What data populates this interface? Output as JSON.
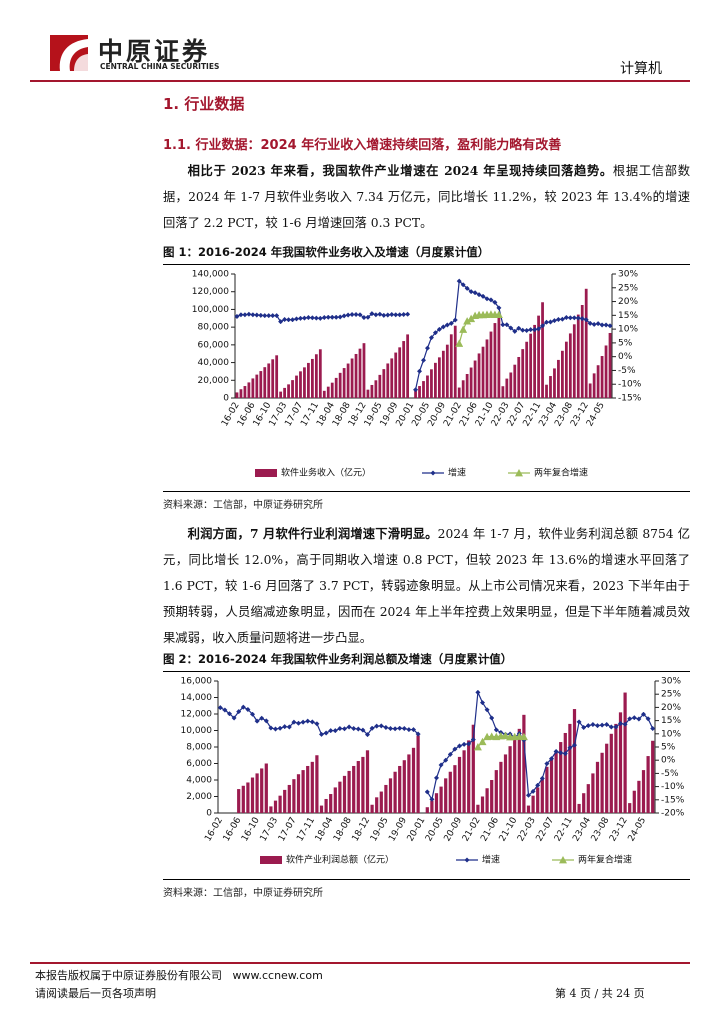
{
  "header": {
    "logo_cn": "中原证券",
    "logo_en": "CENTRAL CHINA SECURITIES",
    "section": "计算机"
  },
  "heading_1": "1. 行业数据",
  "heading_2": "1.1. 行业数据：2024 年行业收入增速持续回落，盈利能力略有改善",
  "paragraphs": [
    {
      "bold": "相比于 2023 年来看，我国软件产业增速在 2024 年呈现持续回落趋势。",
      "text": "根据工信部数据，2024 年 1-7 月软件业务收入 7.34 万亿元，同比增长 11.2%，较 2023 年 13.4%的增速回落了 2.2 PCT，较 1-6 月增速回落 0.3 PCT。"
    },
    {
      "bold": "利润方面，7 月软件行业利润增速下滑明显。",
      "text": "2024 年 1-7 月，软件业务利润总额 8754 亿元，同比增长 12.0%，高于同期收入增速 0.8 PCT，但较 2023 年 13.6%的增速水平回落了 1.6 PCT，较 1-6 月回落了 3.7 PCT，转弱迹象明显。从上市公司情况来看，2023 下半年由于预期转弱，人员缩减迹象明显，因而在 2024 年上半年控费上效果明显，但是下半年随着减员效果减弱，收入质量问题将进一步凸显。"
    }
  ],
  "figures": [
    {
      "caption": "图 1：2016-2024 年我国软件业务收入及增速（月度累计值）",
      "source": "资料来源：工信部，中原证券研究所"
    },
    {
      "caption": "图 2：2016-2024 年我国软件业务利润总额及增速（月度累计值）",
      "source": "资料来源：工信部，中原证券研究所"
    }
  ],
  "chart_data": [
    {
      "type": "bar_line",
      "categories": [
        "16-02",
        null,
        null,
        null,
        "16-06",
        null,
        null,
        null,
        "16-10",
        null,
        null,
        null,
        "17-03",
        null,
        null,
        null,
        "17-07",
        null,
        null,
        null,
        "17-11",
        null,
        null,
        null,
        "18-04",
        null,
        null,
        null,
        "18-08",
        null,
        null,
        null,
        "18-12",
        null,
        null,
        null,
        "19-05",
        null,
        null,
        null,
        "19-09",
        null,
        null,
        null,
        "20-01",
        null,
        null,
        null,
        "20-05",
        null,
        null,
        null,
        "20-09",
        null,
        null,
        null,
        "21-02",
        null,
        null,
        null,
        "21-06",
        null,
        null,
        null,
        "21-10",
        null,
        null,
        null,
        "22-03",
        null,
        null,
        null,
        "22-07",
        null,
        null,
        null,
        "22-11",
        null,
        null,
        null,
        "23-04",
        null,
        null,
        null,
        "23-08",
        null,
        null,
        null,
        "23-12",
        null,
        null,
        null,
        "24-05",
        null,
        null
      ],
      "ylim": [
        0,
        140000
      ],
      "yticks": [
        0,
        {
          "value": 20000,
          "label": "20,000"
        },
        {
          "value": 40000,
          "label": "40,000"
        },
        {
          "value": 60000,
          "label": "60,000"
        },
        {
          "value": 80000,
          "label": "80,000"
        },
        {
          "value": 100000,
          "label": "100,000"
        },
        {
          "value": 120000,
          "label": "120,000"
        },
        {
          "value": 140000,
          "label": "140,000"
        }
      ],
      "y2lim": [
        -15,
        30
      ],
      "y2ticks": [
        {
          "value": -15,
          "label": "-15%"
        },
        {
          "value": -10,
          "label": "-10%"
        },
        {
          "value": -5,
          "label": "-5%"
        },
        {
          "value": 0,
          "label": "0%"
        },
        {
          "value": 5,
          "label": "5%"
        },
        {
          "value": 10,
          "label": "10%"
        },
        {
          "value": 15,
          "label": "15%"
        },
        {
          "value": 20,
          "label": "20%"
        },
        {
          "value": 25,
          "label": "25%"
        },
        {
          "value": 30,
          "label": "30%"
        }
      ],
      "series": [
        {
          "name": "软件业务收入（亿元）",
          "type": "bar",
          "color": "#9b1b4f",
          "values": [
            6300,
            9900,
            13500,
            17600,
            22100,
            26400,
            30400,
            34800,
            39000,
            43700,
            48200,
            7200,
            11400,
            15400,
            20200,
            25300,
            30100,
            34600,
            39600,
            44100,
            49400,
            55000,
            8100,
            12800,
            17300,
            22700,
            28400,
            33800,
            38900,
            44600,
            49700,
            55700,
            61900,
            9400,
            14700,
            20000,
            26100,
            32600,
            39000,
            44700,
            51300,
            57200,
            64300,
            71800,
            null,
            8000,
            13500,
            19100,
            25400,
            32400,
            39700,
            45900,
            53300,
            60200,
            71900,
            81600,
            11800,
            20000,
            27100,
            34400,
            42300,
            50300,
            57900,
            66100,
            75000,
            84600,
            94990,
            13300,
            21900,
            28800,
            37600,
            46300,
            55200,
            63500,
            72600,
            82500,
            93000,
            108100,
            15000,
            24800,
            33400,
            43000,
            53300,
            63600,
            72900,
            83200,
            94200,
            105000,
            123300,
            16400,
            27800,
            37000,
            47400,
            59300,
            73400
          ]
        },
        {
          "name": "增速",
          "type": "line",
          "axis": "y2",
          "marker": "diamond",
          "color": "#1f2f8a",
          "values": [
            14.6,
            15.2,
            15.2,
            15.4,
            15.2,
            15.1,
            15.0,
            14.9,
            14.9,
            14.9,
            14.9,
            12.7,
            13.5,
            13.4,
            13.4,
            13.7,
            13.9,
            14.0,
            14.2,
            14.1,
            14.0,
            13.9,
            14.2,
            14.3,
            14.3,
            14.3,
            14.4,
            14.8,
            15.1,
            15.3,
            15.3,
            15.2,
            14.2,
            14.3,
            15.6,
            15.2,
            15.4,
            15.0,
            15.1,
            15.3,
            15.2,
            15.2,
            15.3,
            15.4,
            null,
            -12.0,
            -5.3,
            -1.3,
            3.1,
            6.9,
            8.7,
            9.9,
            10.8,
            11.5,
            12.1,
            13.3,
            27.4,
            26.1,
            24.8,
            23.6,
            23.2,
            22.5,
            21.9,
            21.0,
            20.6,
            19.7,
            17.7,
            11.6,
            11.6,
            10.4,
            9.2,
            10.3,
            9.6,
            9.5,
            9.8,
            9.8,
            10.1,
            11.2,
            12.5,
            12.6,
            13.1,
            13.5,
            13.6,
            14.2,
            14.1,
            14.1,
            14.0,
            13.8,
            13.4,
            12.1,
            11.7,
            12.0,
            11.5,
            11.5,
            11.2
          ]
        },
        {
          "name": "两年复合增速",
          "type": "line",
          "axis": "y2",
          "marker": "triangle",
          "color": "#9bbb59",
          "values": [
            null,
            null,
            null,
            null,
            null,
            null,
            null,
            null,
            null,
            null,
            null,
            null,
            null,
            null,
            null,
            null,
            null,
            null,
            null,
            null,
            null,
            null,
            null,
            null,
            null,
            null,
            null,
            null,
            null,
            null,
            null,
            null,
            null,
            null,
            null,
            null,
            null,
            null,
            null,
            null,
            null,
            null,
            null,
            null,
            null,
            null,
            null,
            null,
            null,
            null,
            null,
            null,
            null,
            null,
            null,
            null,
            4.8,
            9.9,
            12.9,
            13.8,
            14.9,
            15.2,
            15.2,
            15.3,
            15.4,
            15.3,
            15.3,
            null,
            null,
            null,
            null,
            null,
            null,
            null,
            null,
            null,
            null,
            null,
            null,
            null,
            null,
            null,
            null,
            null,
            null,
            null,
            null,
            null,
            null,
            null,
            null,
            null,
            null,
            null,
            null
          ]
        }
      ]
    },
    {
      "type": "bar_line",
      "categories": [
        "16-02",
        null,
        null,
        null,
        "16-06",
        null,
        null,
        null,
        "16-10",
        null,
        null,
        null,
        "17-03",
        null,
        null,
        null,
        "17-07",
        null,
        null,
        null,
        "17-11",
        null,
        null,
        null,
        "18-04",
        null,
        null,
        null,
        "18-08",
        null,
        null,
        null,
        "18-12",
        null,
        null,
        null,
        "19-05",
        null,
        null,
        null,
        "19-09",
        null,
        null,
        null,
        "20-01",
        null,
        null,
        null,
        "20-05",
        null,
        null,
        null,
        "20-09",
        null,
        null,
        null,
        "21-02",
        null,
        null,
        null,
        "21-06",
        null,
        null,
        null,
        "21-10",
        null,
        null,
        null,
        "22-03",
        null,
        null,
        null,
        "22-07",
        null,
        null,
        null,
        "22-11",
        null,
        null,
        null,
        "23-04",
        null,
        null,
        null,
        "23-08",
        null,
        null,
        null,
        "23-12",
        null,
        null,
        null,
        "24-05",
        null,
        null
      ],
      "ylim": [
        0,
        16000
      ],
      "yticks": [
        0,
        {
          "value": 2000,
          "label": "2,000"
        },
        {
          "value": 4000,
          "label": "4,000"
        },
        {
          "value": 6000,
          "label": "6,000"
        },
        {
          "value": 8000,
          "label": "8,000"
        },
        {
          "value": 10000,
          "label": "10,000"
        },
        {
          "value": 12000,
          "label": "12,000"
        },
        {
          "value": 14000,
          "label": "14,000"
        },
        {
          "value": 16000,
          "label": "16,000"
        }
      ],
      "y2lim": [
        -20,
        30
      ],
      "y2ticks": [
        {
          "value": -20,
          "label": "-20%"
        },
        {
          "value": -15,
          "label": "-15%"
        },
        {
          "value": -10,
          "label": "-10%"
        },
        {
          "value": -5,
          "label": "-5%"
        },
        {
          "value": 0,
          "label": "0%"
        },
        {
          "value": 5,
          "label": "5%"
        },
        {
          "value": 10,
          "label": "10%"
        },
        {
          "value": 15,
          "label": "15%"
        },
        {
          "value": 20,
          "label": "20%"
        },
        {
          "value": 25,
          "label": "25%"
        },
        {
          "value": 30,
          "label": "30%"
        }
      ],
      "series": [
        {
          "name": "软件产业利润总额（亿元）",
          "type": "bar",
          "color": "#9b1b4f",
          "values": [
            null,
            null,
            null,
            null,
            2900,
            3300,
            3700,
            4300,
            4800,
            5400,
            6000,
            800,
            1500,
            2100,
            2800,
            3400,
            4100,
            4700,
            5200,
            5700,
            6200,
            7000,
            900,
            1700,
            2300,
            3100,
            3800,
            4500,
            5100,
            5700,
            6300,
            6800,
            7600,
            1000,
            1900,
            2600,
            3400,
            4200,
            5000,
            5700,
            6400,
            7100,
            7900,
            9400,
            null,
            700,
            1500,
            2400,
            3200,
            4200,
            5000,
            5800,
            6800,
            7600,
            8800,
            10700,
            1000,
            2000,
            3000,
            4000,
            5200,
            6200,
            7100,
            8100,
            9100,
            10200,
            11900,
            900,
            2100,
            3100,
            4300,
            5600,
            6600,
            7500,
            8600,
            9700,
            10800,
            12600,
            1100,
            2400,
            3500,
            4800,
            6200,
            7300,
            8400,
            9600,
            10800,
            12200,
            14600,
            1200,
            2700,
            3900,
            5200,
            6900,
            8754
          ]
        },
        {
          "name": "增速",
          "type": "line",
          "axis": "y2",
          "marker": "diamond",
          "color": "#1f2f8a",
          "values": [
            19.9,
            19.0,
            17.6,
            16.0,
            18.4,
            20.1,
            19.2,
            17.4,
            14.8,
            15.9,
            14.9,
            12.2,
            11.8,
            12.1,
            12.7,
            12.6,
            14.4,
            14.0,
            14.4,
            14.8,
            14.5,
            13.8,
            9.8,
            10.3,
            11.2,
            11.2,
            12.0,
            11.9,
            12.6,
            12.0,
            11.8,
            11.4,
            9.7,
            12.1,
            12.9,
            13.0,
            12.4,
            12.0,
            11.9,
            12.1,
            12.0,
            11.6,
            11.6,
            9.9,
            null,
            -12.0,
            -14.8,
            -6.7,
            -1.8,
            0.0,
            2.2,
            4.2,
            5.4,
            6.0,
            6.2,
            7.8,
            25.7,
            21.8,
            19.1,
            16.0,
            11.5,
            10.5,
            9.8,
            9.9,
            8.6,
            10.1,
            7.6,
            -13.3,
            -11.8,
            -9.5,
            -6.9,
            -1.3,
            0.6,
            3.3,
            2.8,
            2.5,
            4.7,
            5.7,
            14.5,
            12.4,
            13.1,
            13.5,
            13.1,
            13.3,
            13.5,
            12.6,
            12.6,
            13.9,
            13.6,
            15.7,
            16.1,
            15.6,
            17.4,
            15.7,
            12.0
          ]
        },
        {
          "name": "两年复合增速",
          "type": "line",
          "axis": "y2",
          "marker": "triangle",
          "color": "#9bbb59",
          "values": [
            null,
            null,
            null,
            null,
            null,
            null,
            null,
            null,
            null,
            null,
            null,
            null,
            null,
            null,
            null,
            null,
            null,
            null,
            null,
            null,
            null,
            null,
            null,
            null,
            null,
            null,
            null,
            null,
            null,
            null,
            null,
            null,
            null,
            null,
            null,
            null,
            null,
            null,
            null,
            null,
            null,
            null,
            null,
            null,
            null,
            null,
            null,
            null,
            null,
            null,
            null,
            null,
            null,
            null,
            null,
            null,
            5.0,
            7.0,
            8.9,
            9.0,
            8.9,
            9.2,
            9.3,
            8.8,
            8.9,
            9.0,
            8.9,
            null,
            null,
            null,
            null,
            null,
            null,
            null,
            null,
            null,
            null,
            null,
            null,
            null,
            null,
            null,
            null,
            null,
            null,
            null,
            null,
            null,
            null,
            null,
            null,
            null,
            null,
            null,
            null
          ]
        }
      ]
    }
  ],
  "footer": {
    "copyright": "本报告版权属于中原证券股份有限公司",
    "website": "www.ccnew.com",
    "notice": "请阅读最后一页各项声明",
    "page": "第 4 页 / 共 24 页"
  }
}
